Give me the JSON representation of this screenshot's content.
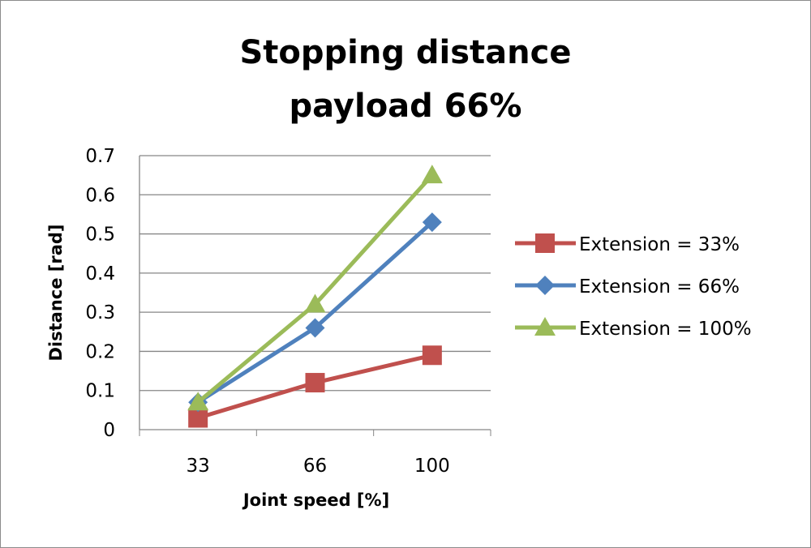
{
  "chart_data": {
    "type": "line",
    "title": "Stopping distance",
    "subtitle": "payload 66%",
    "xlabel": "Joint speed [%]",
    "ylabel": "Distance [rad]",
    "categories": [
      "33",
      "66",
      "100"
    ],
    "ylim": [
      0,
      0.7
    ],
    "yticks": [
      "0",
      "0.1",
      "0.2",
      "0.3",
      "0.4",
      "0.5",
      "0.6",
      "0.7"
    ],
    "grid": true,
    "legend_position": "right",
    "series": [
      {
        "name": "Extension = 33%",
        "values": [
          0.03,
          0.12,
          0.19
        ],
        "color": "#c0504d",
        "marker": "square"
      },
      {
        "name": "Extension = 66%",
        "values": [
          0.07,
          0.26,
          0.53
        ],
        "color": "#4f81bd",
        "marker": "diamond"
      },
      {
        "name": "Extension = 100%",
        "values": [
          0.07,
          0.32,
          0.65
        ],
        "color": "#9bbb59",
        "marker": "triangle"
      }
    ]
  }
}
